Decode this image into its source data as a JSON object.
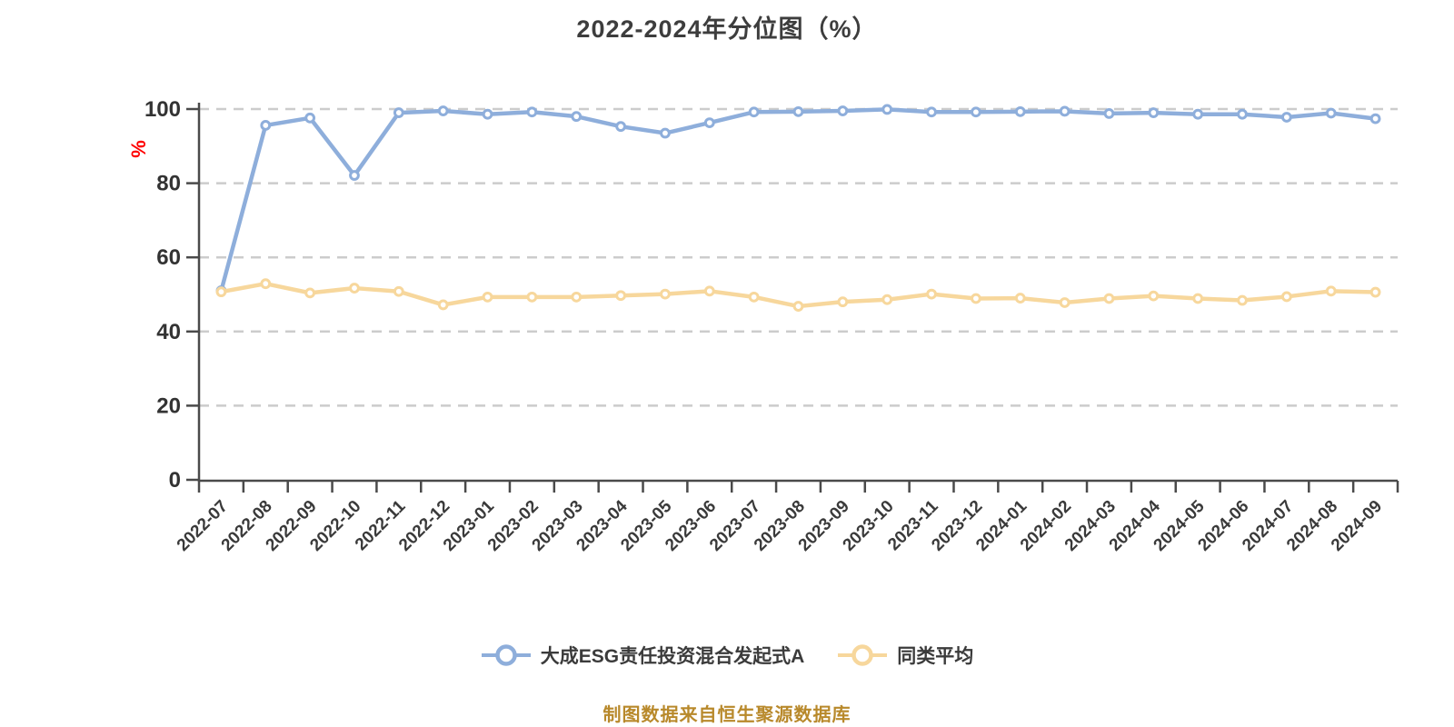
{
  "title": "2022-2024年分位图（%）",
  "source_note": "制图数据来自恒生聚源数据库",
  "colors": {
    "fund_line": "#8eaedb",
    "average_line": "#f7d79c",
    "marker_fill": "#ffffff",
    "grid": "#cccccc",
    "axis": "#4a4a4a",
    "tick_label": "#333333",
    "x_label": "#3a3a3a",
    "title_text": "#3d3d3d",
    "y_unit": "#ff0000",
    "source_text": "#b8892b",
    "background": "#ffffff"
  },
  "chart_data": {
    "type": "line",
    "title": "2022-2024年分位图（%）",
    "ylabel": "%",
    "xlabel": "",
    "ylim": [
      0,
      100
    ],
    "yticks": [
      0,
      20,
      40,
      60,
      80,
      100
    ],
    "grid": "horizontal-dashed",
    "legend_position": "bottom",
    "x_label_rotation": -45,
    "categories": [
      "2022-07",
      "2022-08",
      "2022-09",
      "2022-10",
      "2022-11",
      "2022-12",
      "2023-01",
      "2023-02",
      "2023-03",
      "2023-04",
      "2023-05",
      "2023-06",
      "2023-07",
      "2023-08",
      "2023-09",
      "2023-10",
      "2023-11",
      "2023-12",
      "2024-01",
      "2024-02",
      "2024-03",
      "2024-04",
      "2024-05",
      "2024-06",
      "2024-07",
      "2024-08",
      "2024-09"
    ],
    "series": [
      {
        "name": "大成ESG责任投资混合发起式A",
        "color": "#8eaedb",
        "values": [
          51.0,
          95.6,
          97.6,
          82.1,
          99.0,
          99.5,
          98.6,
          99.2,
          98.0,
          95.3,
          93.5,
          96.3,
          99.2,
          99.3,
          99.5,
          99.9,
          99.2,
          99.2,
          99.3,
          99.4,
          98.8,
          99.0,
          98.6,
          98.6,
          97.8,
          98.9,
          97.4
        ]
      },
      {
        "name": "同类平均",
        "color": "#f7d79c",
        "values": [
          50.7,
          52.9,
          50.4,
          51.7,
          50.8,
          47.2,
          49.3,
          49.3,
          49.3,
          49.7,
          50.1,
          50.9,
          49.3,
          46.8,
          48.0,
          48.6,
          50.1,
          48.9,
          49.0,
          47.8,
          48.9,
          49.6,
          48.9,
          48.4,
          49.4,
          50.9,
          50.6
        ]
      }
    ]
  }
}
